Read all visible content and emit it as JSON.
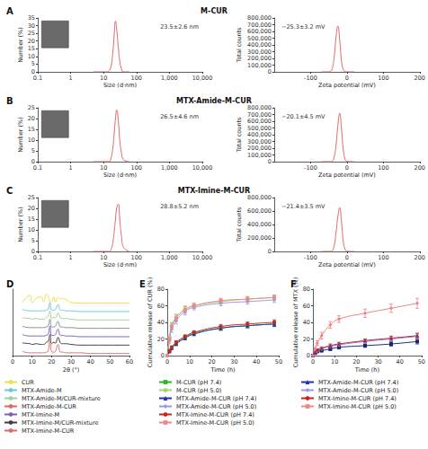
{
  "chart_data": [
    {
      "panel": "A",
      "title": "M-CUR",
      "type": "line",
      "xlabel": "Size (d·nm)",
      "ylabel": "Number (%)",
      "log": "x",
      "grid": false,
      "annotation": "23.5±2.6 nm",
      "color": "#e06868",
      "x": [
        5,
        12,
        15,
        17,
        19,
        21,
        23,
        25,
        28,
        31,
        35,
        40,
        60
      ],
      "values": [
        0,
        0,
        1,
        4,
        12,
        24,
        33,
        28,
        16,
        7,
        2,
        0,
        0
      ],
      "xlim": [
        0.1,
        10000
      ],
      "xticks": [
        0.1,
        1,
        10,
        100,
        {
          "value": 1000,
          "label": "1,000"
        },
        {
          "value": 10000,
          "label": "10,000"
        }
      ],
      "ylim": [
        0,
        35
      ],
      "yticks": [
        0,
        5,
        10,
        15,
        20,
        25,
        30,
        35
      ]
    },
    {
      "type": "line",
      "xlabel": "Zeta potential (mV)",
      "ylabel": "Total counts",
      "grid": false,
      "annotation": "−25.3±3.2 mV",
      "color": "#e06868",
      "x": [
        -70,
        -50,
        -45,
        -40,
        -35,
        -30,
        -25,
        -20,
        -15,
        -10,
        -5,
        0,
        20
      ],
      "values": [
        0,
        0,
        8000,
        60000,
        230000,
        520000,
        680000,
        470000,
        160000,
        30000,
        4000,
        0,
        0
      ],
      "xlim": [
        -200,
        200
      ],
      "xticks": [
        -100,
        0,
        100,
        200
      ],
      "ylim": [
        0,
        800000
      ],
      "yticks": [
        0,
        {
          "value": 100000,
          "label": "100,000"
        },
        {
          "value": 200000,
          "label": "200,000"
        },
        {
          "value": 300000,
          "label": "300,000"
        },
        {
          "value": 400000,
          "label": "400,000"
        },
        {
          "value": 500000,
          "label": "500,000"
        },
        {
          "value": 600000,
          "label": "600,000"
        },
        {
          "value": 700000,
          "label": "700,000"
        },
        {
          "value": 800000,
          "label": "800,000"
        }
      ]
    },
    {
      "panel": "B",
      "title": "MTX-Amide-M-CUR",
      "type": "line",
      "xlabel": "Size (d·nm)",
      "ylabel": "Number (%)",
      "log": "x",
      "grid": false,
      "annotation": "26.5±4.6 nm",
      "color": "#e06868",
      "x": [
        5,
        12,
        15,
        17,
        19,
        21,
        23,
        25,
        28,
        31,
        35,
        40,
        60
      ],
      "values": [
        0,
        0,
        0,
        2,
        6,
        13,
        20,
        24,
        19,
        10,
        4,
        1,
        0
      ],
      "xlim": [
        0.1,
        10000
      ],
      "xticks": [
        0.1,
        1,
        10,
        100,
        {
          "value": 1000,
          "label": "1,000"
        },
        {
          "value": 10000,
          "label": "10,000"
        }
      ],
      "ylim": [
        0,
        25
      ],
      "yticks": [
        0,
        5,
        10,
        15,
        20,
        25
      ]
    },
    {
      "type": "line",
      "xlabel": "Zeta potential (mV)",
      "ylabel": "Total counts",
      "grid": false,
      "annotation": "−20.1±4.5 mV",
      "color": "#e06868",
      "x": [
        -70,
        -45,
        -40,
        -35,
        -30,
        -25,
        -20,
        -15,
        -10,
        -5,
        0,
        5,
        20
      ],
      "values": [
        0,
        0,
        10000,
        70000,
        250000,
        540000,
        720000,
        480000,
        170000,
        30000,
        4000,
        0,
        0
      ],
      "xlim": [
        -200,
        200
      ],
      "xticks": [
        -100,
        0,
        100,
        200
      ],
      "ylim": [
        0,
        800000
      ],
      "yticks": [
        0,
        {
          "value": 100000,
          "label": "100,000"
        },
        {
          "value": 200000,
          "label": "200,000"
        },
        {
          "value": 300000,
          "label": "300,000"
        },
        {
          "value": 400000,
          "label": "400,000"
        },
        {
          "value": 500000,
          "label": "500,000"
        },
        {
          "value": 600000,
          "label": "600,000"
        },
        {
          "value": 700000,
          "label": "700,000"
        },
        {
          "value": 800000,
          "label": "800,000"
        }
      ]
    },
    {
      "panel": "C",
      "title": "MTX-Imine-M-CUR",
      "type": "line",
      "xlabel": "Size (d·nm)",
      "ylabel": "Number (%)",
      "log": "x",
      "grid": false,
      "annotation": "28.8±5.2 nm",
      "color": "#e06868",
      "x": [
        5,
        12,
        15,
        17,
        19,
        21,
        23,
        25,
        28,
        31,
        35,
        40,
        60
      ],
      "values": [
        0,
        0,
        0,
        1,
        4,
        9,
        15,
        20,
        22,
        15,
        7,
        2,
        0
      ],
      "xlim": [
        0.1,
        10000
      ],
      "xticks": [
        0.1,
        1,
        10,
        100,
        {
          "value": 1000,
          "label": "1,000"
        },
        {
          "value": 10000,
          "label": "10,000"
        }
      ],
      "ylim": [
        0,
        25
      ],
      "yticks": [
        0,
        5,
        10,
        15,
        20,
        25
      ]
    },
    {
      "type": "line",
      "xlabel": "Zeta potential (mV)",
      "ylabel": "Total counts",
      "grid": false,
      "annotation": "−21.4±3.5 mV",
      "color": "#e06868",
      "x": [
        -70,
        -45,
        -40,
        -35,
        -30,
        -25,
        -20,
        -15,
        -10,
        -5,
        0,
        5,
        20
      ],
      "values": [
        0,
        0,
        12000,
        90000,
        280000,
        520000,
        650000,
        430000,
        150000,
        28000,
        4000,
        0,
        0
      ],
      "xlim": [
        -200,
        200
      ],
      "xticks": [
        -100,
        0,
        100,
        200
      ],
      "ylim": [
        0,
        800000
      ],
      "yticks": [
        0,
        {
          "value": 200000,
          "label": "200,000"
        },
        {
          "value": 400000,
          "label": "400,000"
        },
        {
          "value": 600000,
          "label": "600,000"
        },
        {
          "value": 800000,
          "label": "800,000"
        }
      ]
    },
    {
      "panel": "D",
      "type": "line",
      "xlabel": "2θ (°)",
      "grid": false,
      "legend": "bottom",
      "tick_labels": "x",
      "x": [
        5,
        8.9,
        10,
        12.2,
        14.5,
        16,
        17.3,
        18.2,
        19.2,
        20,
        21.2,
        22,
        23.3,
        24.6,
        25.6,
        27.4,
        30,
        35,
        40,
        45,
        50,
        55,
        60
      ],
      "xlim": [
        0,
        60
      ],
      "xticks": [
        0,
        10,
        20,
        30,
        40,
        50,
        60
      ],
      "ylim": [
        0,
        95
      ],
      "series": [
        {
          "name": "CUR",
          "color": "#f0e040",
          "line_style": "solid",
          "values": [
            76,
            86,
            76,
            82,
            84,
            77,
            88,
            85,
            78,
            77,
            84,
            77,
            83,
            81,
            82,
            80,
            76,
            75,
            75,
            75,
            75,
            75,
            75
          ]
        },
        {
          "name": "MTX-Amide-M",
          "color": "#6fc8e0",
          "line_style": "solid",
          "values": [
            66,
            64,
            64,
            64,
            64,
            64,
            65,
            66,
            76,
            65,
            65,
            66,
            73,
            65,
            65,
            64,
            64,
            63,
            63,
            63,
            63,
            63,
            63
          ]
        },
        {
          "name": "MTX-Amide-M/CUR-mixture",
          "color": "#9ed49e",
          "line_style": "solid",
          "values": [
            54,
            53,
            52,
            53,
            52,
            52,
            55,
            56,
            64,
            53,
            55,
            54,
            61,
            54,
            53,
            53,
            52,
            51,
            51,
            51,
            51,
            51,
            51
          ]
        },
        {
          "name": "MTX-Amide-M-CUR",
          "color": "#8c8c8c",
          "line_style": "solid",
          "values": [
            42,
            40,
            40,
            40,
            40,
            40,
            41,
            42,
            52,
            41,
            41,
            42,
            49,
            41,
            41,
            40,
            40,
            39,
            39,
            39,
            39,
            39,
            39
          ]
        },
        {
          "name": "MTX-Imine-M",
          "color": "#8060c0",
          "line_style": "solid",
          "values": [
            30,
            28,
            28,
            28,
            28,
            28,
            29,
            30,
            42,
            29,
            29,
            30,
            38,
            29,
            29,
            28,
            28,
            27,
            27,
            27,
            27,
            27,
            27
          ]
        },
        {
          "name": "MTX-Imine-M/CUR-mixture",
          "color": "#404040",
          "line_style": "solid",
          "values": [
            18,
            17,
            16,
            17,
            16,
            16,
            19,
            20,
            30,
            17,
            19,
            18,
            26,
            18,
            17,
            17,
            16,
            15,
            15,
            15,
            15,
            15,
            15
          ]
        },
        {
          "name": "MTX-Imine-M-CUR",
          "color": "#e07070",
          "line_style": "solid",
          "values": [
            6,
            4,
            4,
            4,
            4,
            4,
            5,
            6,
            22,
            6,
            5,
            6,
            16,
            5,
            5,
            4,
            4,
            4,
            3,
            3,
            3,
            3,
            3
          ]
        }
      ]
    },
    {
      "panel": "E",
      "type": "line",
      "xlabel": "Time (h)",
      "ylabel": "Cumulative release of CUR (%)",
      "grid": false,
      "legend": "bottom",
      "x": [
        0,
        1,
        2,
        4,
        8,
        12,
        24,
        36,
        48
      ],
      "xlim": [
        0,
        50
      ],
      "xticks": [
        0,
        10,
        20,
        30,
        40,
        50
      ],
      "ylim": [
        0,
        80
      ],
      "yticks": [
        0,
        20,
        40,
        60,
        80
      ],
      "series": [
        {
          "name": "M-CUR (pH 7.4)",
          "color": "#2fb52f",
          "marker": "square",
          "line_style": "solid",
          "values": [
            0,
            6,
            10,
            15,
            22,
            27,
            33,
            36,
            38
          ],
          "errors": [
            0,
            1,
            1.5,
            2,
            2,
            2,
            2.5,
            2.5,
            3
          ]
        },
        {
          "name": "M-CUR (pH 5.0)",
          "color": "#9cd86a",
          "marker": "circle",
          "line_style": "solid",
          "values": [
            0,
            22,
            36,
            46,
            56,
            60,
            65,
            68,
            70
          ],
          "errors": [
            0,
            3,
            4,
            4,
            4,
            3,
            3,
            3,
            3
          ]
        },
        {
          "name": "MTX-Amide-M-CUR (pH 7.4)",
          "color": "#2233aa",
          "marker": "triangle",
          "line_style": "solid",
          "values": [
            0,
            5,
            9,
            14,
            21,
            26,
            33,
            36,
            38
          ],
          "errors": [
            0,
            1,
            1.5,
            2,
            2,
            2,
            2.5,
            2.5,
            3
          ]
        },
        {
          "name": "MTX-Amide-M-CUR (pH 5.0)",
          "color": "#9a9ade",
          "marker": "diamond",
          "line_style": "solid",
          "values": [
            0,
            18,
            32,
            42,
            53,
            58,
            63,
            65,
            67
          ],
          "errors": [
            0,
            3,
            4,
            4,
            4,
            3,
            3,
            3,
            3
          ]
        },
        {
          "name": "MTX-Imine-M-CUR (pH 7.4)",
          "color": "#cc2222",
          "marker": "circle",
          "line_style": "solid",
          "values": [
            0,
            6,
            10,
            16,
            23,
            28,
            35,
            38,
            40
          ],
          "errors": [
            0,
            1,
            1.5,
            2,
            2,
            2,
            2.5,
            2.5,
            3
          ]
        },
        {
          "name": "MTX-Imine-M-CUR (pH 5.0)",
          "color": "#ee8888",
          "marker": "square",
          "line_style": "solid",
          "values": [
            0,
            20,
            35,
            45,
            55,
            60,
            66,
            68,
            70
          ],
          "errors": [
            0,
            3,
            4,
            4,
            4,
            3,
            3,
            3,
            3
          ]
        }
      ]
    },
    {
      "panel": "F",
      "type": "line",
      "xlabel": "Time (h)",
      "ylabel": "Cumulative release of MTX (%)",
      "grid": false,
      "legend": "bottom",
      "x": [
        0,
        1,
        2,
        4,
        8,
        12,
        24,
        36,
        48
      ],
      "xlim": [
        0,
        50
      ],
      "xticks": [
        0,
        10,
        20,
        30,
        40,
        50
      ],
      "ylim": [
        0,
        80
      ],
      "yticks": [
        0,
        20,
        40,
        60,
        80
      ],
      "series": [
        {
          "name": "MTX-Amide-M-CUR (pH 7.4)",
          "color": "#1a237e",
          "marker": "square",
          "line_style": "solid",
          "values": [
            0,
            3,
            5,
            6,
            8,
            10,
            12,
            14,
            17
          ],
          "errors": [
            0,
            1,
            1,
            1.5,
            2,
            2,
            2,
            2.5,
            3
          ]
        },
        {
          "name": "MTX-Amide-M-CUR (pH 5.0)",
          "color": "#8a8adf",
          "marker": "circle",
          "line_style": "solid",
          "values": [
            0,
            4,
            6,
            8,
            11,
            13,
            17,
            20,
            23
          ],
          "errors": [
            0,
            1,
            1,
            1.5,
            2,
            2,
            2,
            2.5,
            3
          ]
        },
        {
          "name": "MTX-Imine-M-CUR (pH 7.4)",
          "color": "#b22222",
          "marker": "triangle",
          "line_style": "solid",
          "values": [
            0,
            4,
            7,
            9,
            12,
            14,
            18,
            21,
            24
          ],
          "errors": [
            0,
            1,
            1,
            1.5,
            2,
            2,
            2,
            2.5,
            3
          ]
        },
        {
          "name": "MTX-Imine-M-CUR (pH 5.0)",
          "color": "#f08080",
          "marker": "diamond",
          "line_style": "solid",
          "values": [
            0,
            8,
            15,
            24,
            37,
            44,
            51,
            57,
            63
          ],
          "errors": [
            0,
            2,
            3,
            4,
            4,
            4,
            5,
            5,
            6
          ]
        }
      ]
    }
  ]
}
